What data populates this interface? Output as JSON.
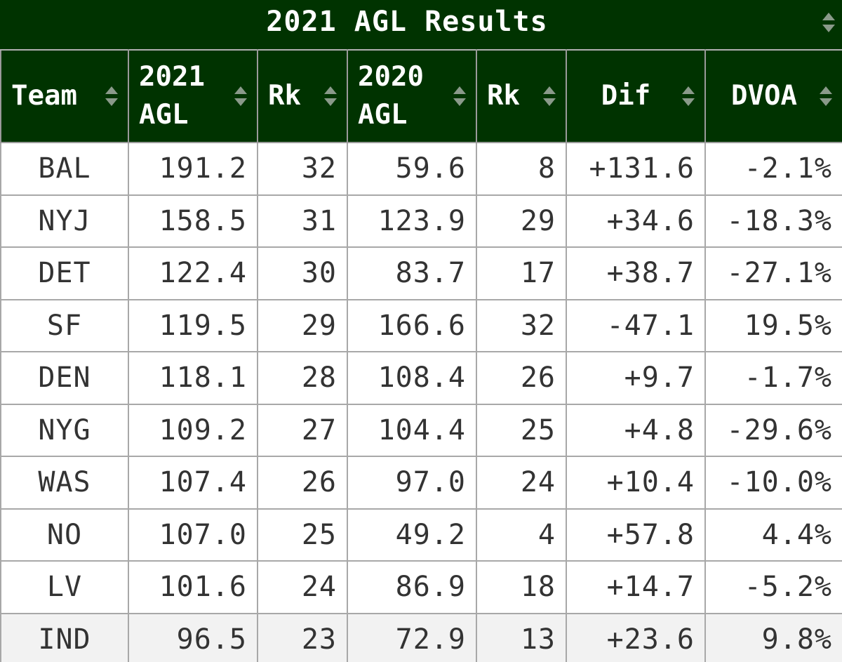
{
  "title": "2021 AGL Results",
  "colors": {
    "header_bg": "#003300",
    "header_text": "#ffffff",
    "grid": "#a8a8a8",
    "cell_text": "#333333"
  },
  "columns": [
    {
      "label": "Team",
      "line2": ""
    },
    {
      "label": "2021",
      "line2": "AGL"
    },
    {
      "label": "Rk",
      "line2": ""
    },
    {
      "label": "2020",
      "line2": "AGL"
    },
    {
      "label": "Rk",
      "line2": ""
    },
    {
      "label": "Dif",
      "line2": ""
    },
    {
      "label": "DVOA",
      "line2": ""
    }
  ],
  "rows": [
    [
      "BAL",
      "191.2",
      "32",
      "59.6",
      "8",
      "+131.6",
      "-2.1%"
    ],
    [
      "NYJ",
      "158.5",
      "31",
      "123.9",
      "29",
      "+34.6",
      "-18.3%"
    ],
    [
      "DET",
      "122.4",
      "30",
      "83.7",
      "17",
      "+38.7",
      "-27.1%"
    ],
    [
      "SF",
      "119.5",
      "29",
      "166.6",
      "32",
      "-47.1",
      "19.5%"
    ],
    [
      "DEN",
      "118.1",
      "28",
      "108.4",
      "26",
      "+9.7",
      "-1.7%"
    ],
    [
      "NYG",
      "109.2",
      "27",
      "104.4",
      "25",
      "+4.8",
      "-29.6%"
    ],
    [
      "WAS",
      "107.4",
      "26",
      "97.0",
      "24",
      "+10.4",
      "-10.0%"
    ],
    [
      "NO",
      "107.0",
      "25",
      "49.2",
      "4",
      "+57.8",
      "4.4%"
    ],
    [
      "LV",
      "101.6",
      "24",
      "86.9",
      "18",
      "+14.7",
      "-5.2%"
    ],
    [
      "IND",
      "96.5",
      "23",
      "72.9",
      "13",
      "+23.6",
      "9.8%"
    ]
  ]
}
